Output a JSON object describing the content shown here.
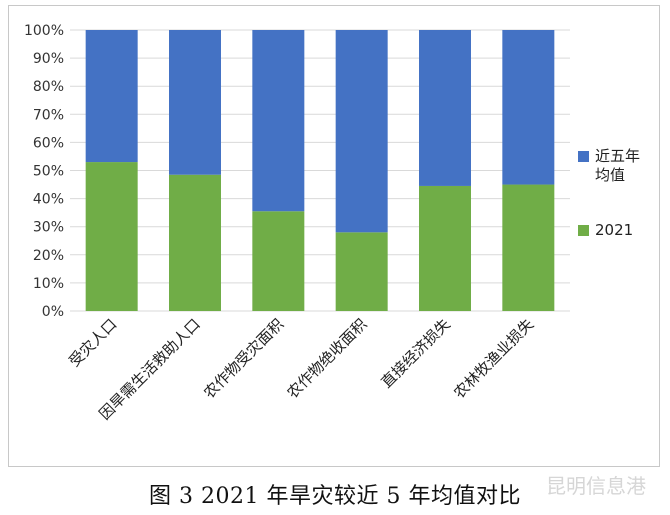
{
  "chart_data": {
    "type": "bar",
    "stacked": true,
    "categories": [
      "受灾人口",
      "因旱需生活救助人口",
      "农作物受灾面积",
      "农作物绝收面积",
      "直接经济损失",
      "农林牧渔业损失"
    ],
    "series": [
      {
        "name": "2021",
        "color": "#70ad47",
        "values": [
          53,
          48.5,
          35.5,
          28,
          44.5,
          45
        ]
      },
      {
        "name": "近五年均值",
        "color": "#4472c4",
        "values": [
          47,
          51.5,
          64.5,
          72,
          55.5,
          55
        ]
      }
    ],
    "ylim": [
      0,
      100
    ],
    "yticks": [
      "0%",
      "10%",
      "20%",
      "30%",
      "40%",
      "50%",
      "60%",
      "70%",
      "80%",
      "90%",
      "100%"
    ],
    "grid": true,
    "legend_position": "right",
    "legend": [
      {
        "label": "近五年均值",
        "lines": [
          "近五年",
          "均值"
        ],
        "color": "#4472c4"
      },
      {
        "label": "2021",
        "lines": [
          "2021"
        ],
        "color": "#70ad47"
      }
    ]
  },
  "caption": "图 3 2021 年旱灾较近 5 年均值对比",
  "watermark": "昆明信息港"
}
